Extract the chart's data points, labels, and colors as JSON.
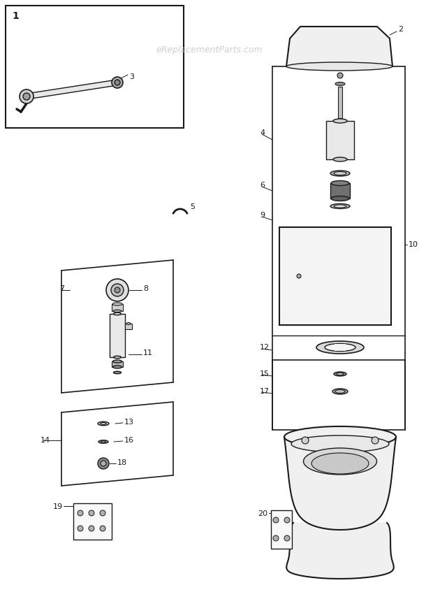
{
  "bg_color": "#ffffff",
  "line_color": "#1a1a1a",
  "watermark_text": "eReplacementParts.com",
  "watermark_color": "#c8c8c8",
  "fig_width": 6.2,
  "fig_height": 8.77,
  "dpi": 100
}
